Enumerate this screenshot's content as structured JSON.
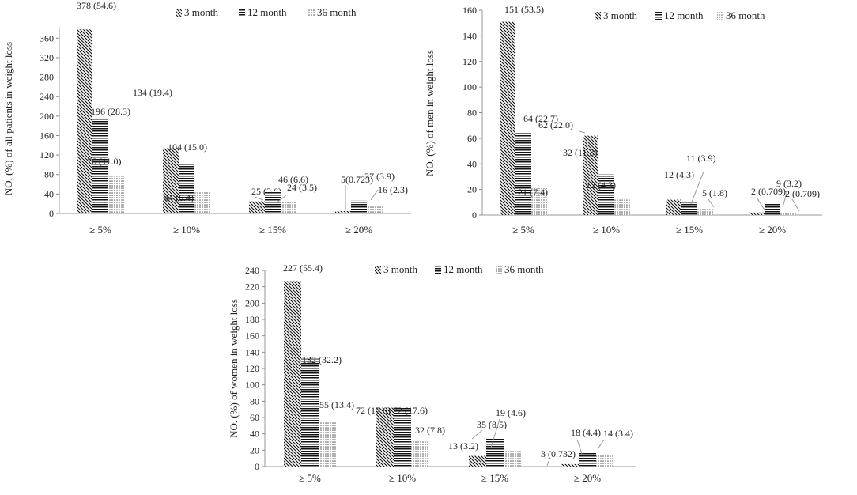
{
  "chart_data": [
    {
      "type": "bar",
      "categories": [
        "≥ 5%",
        "≥ 10%",
        "≥ 15%",
        "≥ 20%"
      ],
      "series": [
        {
          "name": "3 month",
          "values": [
            378,
            134,
            25,
            5
          ],
          "labels": [
            "378 (54.6)",
            "134 (19.4)",
            "25 (3.6)",
            "5(0.723)"
          ]
        },
        {
          "name": "12 month",
          "values": [
            196,
            104,
            46,
            27
          ],
          "labels": [
            "196 (28.3)",
            "104 (15.0)",
            "46 (6.6)",
            "27 (3.9)"
          ]
        },
        {
          "name": "36 month",
          "values": [
            76,
            44,
            24,
            16
          ],
          "labels": [
            "76 (11.0)",
            "44 (6.4)",
            "24 (3.5)",
            "16 (2.3)"
          ]
        }
      ],
      "ylabel": "NO. (%)  of all patients in weight loss",
      "ylim": [
        0,
        380
      ],
      "yticks": [
        0,
        40,
        80,
        120,
        160,
        200,
        240,
        280,
        320,
        360
      ],
      "legend": "top"
    },
    {
      "type": "bar",
      "categories": [
        "≥ 5%",
        "≥ 10%",
        "≥ 15%",
        "≥ 20%"
      ],
      "series": [
        {
          "name": "3 month",
          "values": [
            151,
            62,
            12,
            2
          ],
          "labels": [
            "151 (53.5)",
            "62 (22.0)",
            "12 (4.3)",
            "2 (0.709)"
          ]
        },
        {
          "name": "12 month",
          "values": [
            64,
            32,
            11,
            9
          ],
          "labels": [
            "64 (22.7)",
            "32 (11.3)",
            "11 (3.9)",
            "9 (3.2)"
          ]
        },
        {
          "name": "36 month",
          "values": [
            21,
            12,
            5,
            2
          ],
          "labels": [
            "21 (7.4)",
            "12 (4.3)",
            "5 (1.8)",
            "2 (0.709)"
          ]
        }
      ],
      "ylabel": "NO. (%) of men in weight loss",
      "ylim": [
        0,
        160
      ],
      "yticks": [
        0,
        20,
        40,
        60,
        80,
        100,
        120,
        140,
        160
      ],
      "legend": "top"
    },
    {
      "type": "bar",
      "categories": [
        "≥ 5%",
        "≥ 10%",
        "≥ 15%",
        "≥ 20%"
      ],
      "series": [
        {
          "name": "3 month",
          "values": [
            227,
            72,
            13,
            3
          ],
          "labels": [
            "227 (55.4)",
            "72 (17.6)",
            "13 (3.2)",
            "3 (0.732)"
          ]
        },
        {
          "name": "12 month",
          "values": [
            132,
            72,
            35,
            18
          ],
          "labels": [
            "132 (32.2)",
            "72 (17.6)",
            "35 (8.5)",
            "18 (4.4)"
          ]
        },
        {
          "name": "36 month",
          "values": [
            55,
            32,
            19,
            14
          ],
          "labels": [
            "55 (13.4)",
            "32 (7.8)",
            "19 (4.6)",
            "14 (3.4)"
          ]
        }
      ],
      "ylabel": "NO. (%)  of women in weight loss",
      "ylim": [
        0,
        240
      ],
      "yticks": [
        0,
        20,
        40,
        60,
        80,
        100,
        120,
        140,
        160,
        180,
        200,
        220,
        240
      ],
      "legend": "top"
    }
  ]
}
